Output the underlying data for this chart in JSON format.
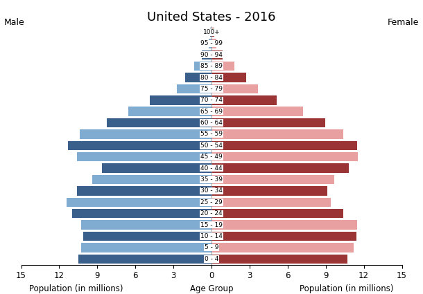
{
  "title": "United States - 2016",
  "age_groups_bottom_to_top": [
    "0 - 4",
    "5 - 9",
    "10 - 14",
    "15 - 19",
    "20 - 24",
    "25 - 29",
    "30 - 34",
    "35 - 39",
    "40 - 44",
    "45 - 49",
    "50 - 54",
    "55 - 59",
    "60 - 64",
    "65 - 69",
    "70 - 74",
    "75 - 79",
    "80 - 84",
    "85 - 89",
    "90 - 94",
    "95 - 99",
    "100+"
  ],
  "male_bottom_to_top": [
    10.5,
    10.3,
    10.1,
    10.3,
    11.0,
    11.4,
    10.6,
    9.4,
    8.65,
    10.6,
    11.3,
    10.4,
    8.25,
    6.55,
    4.85,
    2.75,
    2.05,
    1.35,
    0.75,
    0.2,
    0.1
  ],
  "female_bottom_to_top": [
    10.7,
    11.2,
    11.4,
    11.5,
    10.4,
    9.4,
    9.1,
    9.65,
    10.8,
    11.55,
    11.45,
    10.4,
    8.95,
    7.2,
    5.15,
    3.65,
    2.75,
    1.8,
    0.9,
    0.4,
    0.2
  ],
  "male_dark_color": "#3a5f8a",
  "male_light_color": "#7facd0",
  "female_dark_color": "#9b3434",
  "female_light_color": "#e8a0a0",
  "xlabel_left": "Population (in millions)",
  "xlabel_center": "Age Group",
  "xlabel_right": "Population (in millions)",
  "label_male": "Male",
  "label_female": "Female",
  "xlim": 15,
  "background_color": "#ffffff"
}
